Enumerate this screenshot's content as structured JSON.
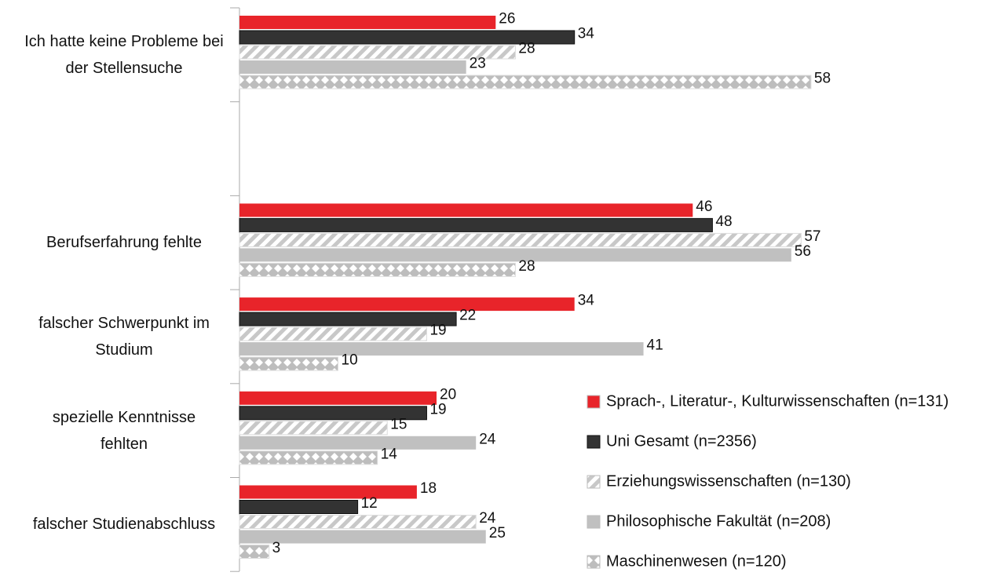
{
  "chart_data": {
    "type": "barh",
    "categories": [
      "Ich hatte keine Probleme bei der Stellensuche",
      null,
      "Berufserfahrung fehlte",
      "falscher Schwerpunkt im Studium",
      "spezielle Kenntnisse fehlten",
      "falscher Studienabschluss"
    ],
    "series": [
      {
        "name": "Sprach-, Literatur-, Kulturwissenschaften (n=131)",
        "color": "#e8242a",
        "pattern": "solid",
        "values": [
          26,
          null,
          46,
          34,
          20,
          18
        ]
      },
      {
        "name": "Uni Gesamt (n=2356)",
        "color": "#333333",
        "pattern": "solid",
        "values": [
          34,
          null,
          48,
          22,
          19,
          12
        ]
      },
      {
        "name": "Erziehungswissenschaften (n=130)",
        "color": "#c8c8c8",
        "pattern": "hatch",
        "values": [
          28,
          null,
          57,
          19,
          15,
          24
        ]
      },
      {
        "name": "Philosophische Fakultät (n=208)",
        "color": "#c0c0c0",
        "pattern": "solid",
        "values": [
          23,
          null,
          56,
          41,
          24,
          25
        ]
      },
      {
        "name": "Maschinenwesen (n=120)",
        "color": "#bdbdbd",
        "pattern": "diamond",
        "values": [
          58,
          null,
          28,
          10,
          14,
          3
        ]
      }
    ],
    "legend": "bottom-right"
  }
}
